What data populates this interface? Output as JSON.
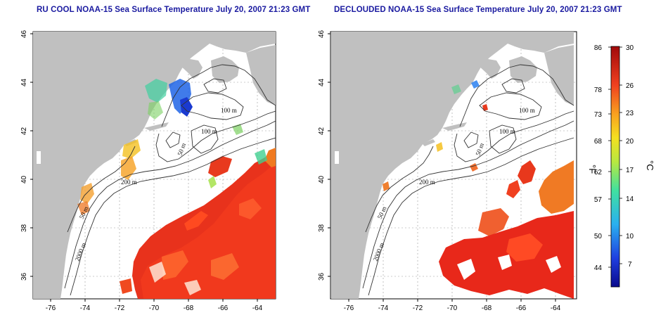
{
  "left_map": {
    "title": "RU COOL NOAA-15 Sea Surface Temperature July 20, 2007 21:23 GMT",
    "contour_labels": [
      "100 m",
      "100 m",
      "50 m",
      "200 m",
      "50 m",
      "2000 m"
    ]
  },
  "right_map": {
    "title": "DECLOUDED NOAA-15 Sea Surface Temperature July 20, 2007 21:23 GMT",
    "contour_labels": [
      "100 m",
      "100 m",
      "50 m",
      "200 m",
      "50 m",
      "2000 m"
    ]
  },
  "axes": {
    "lat_ticks": [
      "46",
      "44",
      "42",
      "40",
      "38",
      "36"
    ],
    "lon_ticks": [
      "-76",
      "-74",
      "-72",
      "-70",
      "-68",
      "-66",
      "-64"
    ]
  },
  "colorbar": {
    "f_label": "°F",
    "c_label": "°C",
    "f_ticks": [
      "86",
      "78",
      "73",
      "68",
      "62",
      "57",
      "50",
      "44"
    ],
    "c_ticks": [
      "30",
      "26",
      "23",
      "20",
      "17",
      "14",
      "10",
      "7"
    ]
  },
  "colors": {
    "land": "#c0c0c0",
    "warm": "#e8301a",
    "title": "#1a1aa0"
  }
}
